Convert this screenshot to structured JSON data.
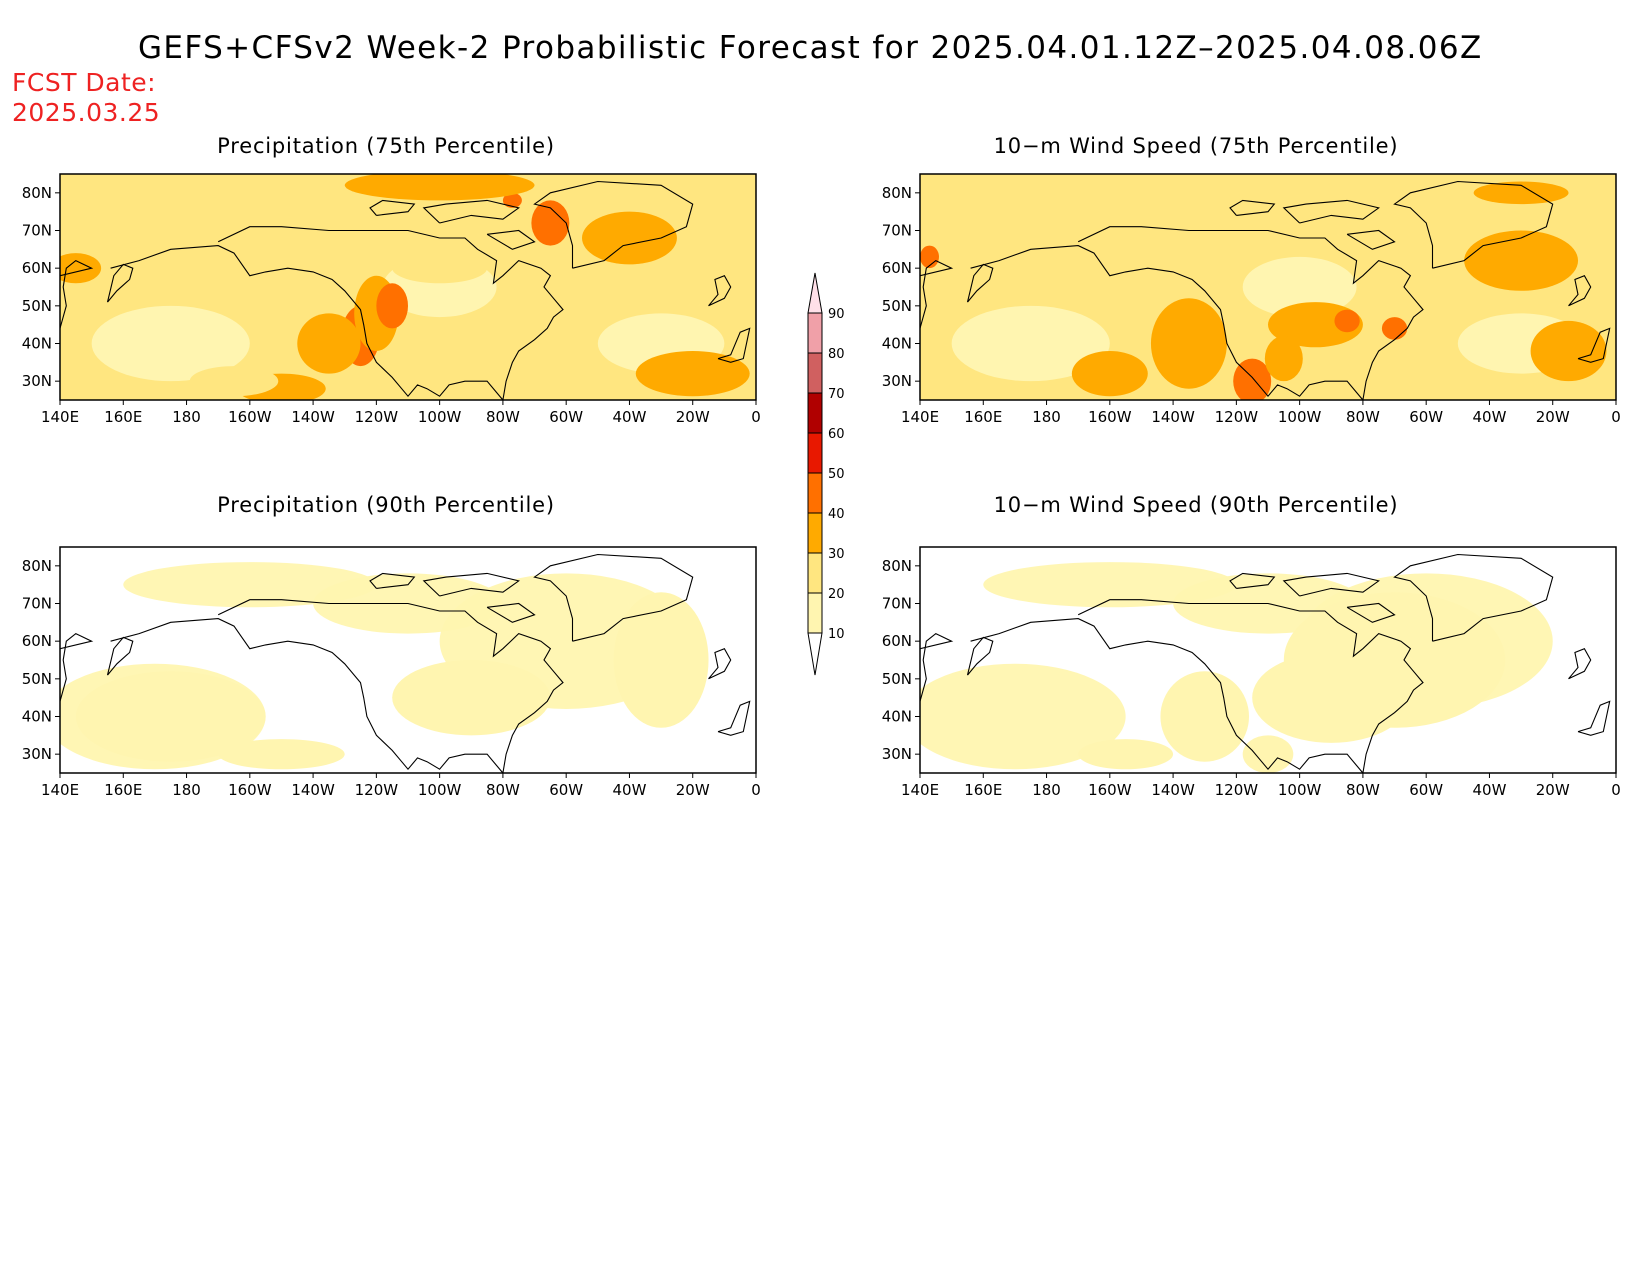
{
  "title": "GEFS+CFSv2 Week-2 Probabilistic Forecast for 2025.04.01.12Z–2025.04.08.06Z",
  "forecast_date": {
    "label": "FCST Date:",
    "value": "2025.03.25"
  },
  "panels": [
    {
      "id": "precip75",
      "title": "Precipitation (75th Percentile)",
      "blobs": [
        {
          "lon": 235,
          "lat": 42,
          "rx": 6,
          "ry": 8,
          "level": 3
        },
        {
          "lon": 240,
          "lat": 48,
          "rx": 7,
          "ry": 10,
          "level": 2
        },
        {
          "lon": 245,
          "lat": 50,
          "rx": 5,
          "ry": 6,
          "level": 3
        },
        {
          "lon": 225,
          "lat": 40,
          "rx": 10,
          "ry": 8,
          "level": 2
        },
        {
          "lon": 210,
          "lat": 28,
          "rx": 14,
          "ry": 4,
          "level": 2
        },
        {
          "lon": 195,
          "lat": 30,
          "rx": 14,
          "ry": 4,
          "level": 1
        },
        {
          "lon": 295,
          "lat": 72,
          "rx": 6,
          "ry": 6,
          "level": 3
        },
        {
          "lon": 283,
          "lat": 78,
          "rx": 3,
          "ry": 2,
          "level": 3
        },
        {
          "lon": 320,
          "lat": 68,
          "rx": 15,
          "ry": 7,
          "level": 2
        },
        {
          "lon": 340,
          "lat": 32,
          "rx": 18,
          "ry": 6,
          "level": 2
        },
        {
          "lon": 260,
          "lat": 82,
          "rx": 30,
          "ry": 4,
          "level": 2
        },
        {
          "lon": 160,
          "lat": 82,
          "rx": 25,
          "ry": 4,
          "level": 1
        },
        {
          "lon": 145,
          "lat": 60,
          "rx": 8,
          "ry": 4,
          "level": 2
        },
        {
          "lon": 260,
          "lat": 60,
          "rx": 15,
          "ry": 4,
          "level": 1
        }
      ]
    },
    {
      "id": "wind75",
      "title": "10−m Wind Speed (75th Percentile)",
      "blobs": [
        {
          "lon": 225,
          "lat": 40,
          "rx": 12,
          "ry": 12,
          "level": 2
        },
        {
          "lon": 245,
          "lat": 30,
          "rx": 6,
          "ry": 6,
          "level": 3
        },
        {
          "lon": 265,
          "lat": 45,
          "rx": 15,
          "ry": 6,
          "level": 2
        },
        {
          "lon": 275,
          "lat": 46,
          "rx": 4,
          "ry": 3,
          "level": 3
        },
        {
          "lon": 290,
          "lat": 44,
          "rx": 4,
          "ry": 3,
          "level": 3
        },
        {
          "lon": 330,
          "lat": 62,
          "rx": 18,
          "ry": 8,
          "level": 2
        },
        {
          "lon": 345,
          "lat": 38,
          "rx": 12,
          "ry": 8,
          "level": 2
        },
        {
          "lon": 200,
          "lat": 32,
          "rx": 12,
          "ry": 6,
          "level": 2
        },
        {
          "lon": 143,
          "lat": 63,
          "rx": 3,
          "ry": 3,
          "level": 3
        },
        {
          "lon": 330,
          "lat": 80,
          "rx": 15,
          "ry": 3,
          "level": 2
        },
        {
          "lon": 255,
          "lat": 36,
          "rx": 6,
          "ry": 6,
          "level": 2
        }
      ]
    },
    {
      "id": "precip90",
      "title": "Precipitation (90th Percentile)",
      "blobs": [
        {
          "lon": 175,
          "lat": 40,
          "rx": 30,
          "ry": 12,
          "level": 0
        },
        {
          "lon": 270,
          "lat": 45,
          "rx": 25,
          "ry": 10,
          "level": 0
        },
        {
          "lon": 330,
          "lat": 55,
          "rx": 15,
          "ry": 18,
          "level": 0
        },
        {
          "lon": 210,
          "lat": 30,
          "rx": 20,
          "ry": 4,
          "level": 0
        }
      ]
    },
    {
      "id": "wind90",
      "title": "10−m Wind Speed (90th Percentile)",
      "blobs": [
        {
          "lon": 230,
          "lat": 40,
          "rx": 14,
          "ry": 12,
          "level": 0
        },
        {
          "lon": 290,
          "lat": 55,
          "rx": 35,
          "ry": 18,
          "level": 0
        },
        {
          "lon": 270,
          "lat": 45,
          "rx": 25,
          "ry": 12,
          "level": 0
        },
        {
          "lon": 205,
          "lat": 30,
          "rx": 15,
          "ry": 4,
          "level": 0
        },
        {
          "lon": 250,
          "lat": 30,
          "rx": 8,
          "ry": 5,
          "level": 0
        }
      ]
    }
  ],
  "axes": {
    "lon_ticks": [
      "140E",
      "160E",
      "180",
      "160W",
      "140W",
      "120W",
      "100W",
      "80W",
      "60W",
      "40W",
      "20W",
      "0"
    ],
    "lat_ticks": [
      "80N",
      "70N",
      "60N",
      "50N",
      "40N",
      "30N"
    ],
    "lon_range": [
      140,
      360
    ],
    "lat_range": [
      25,
      85
    ]
  },
  "colorbar": {
    "levels": [
      "10",
      "20",
      "30",
      "40",
      "50",
      "60",
      "70",
      "80",
      "90"
    ],
    "colors": [
      "#fff5b0",
      "#ffe680",
      "#ffaa00",
      "#ff7000",
      "#e81800",
      "#b00000",
      "#d06060",
      "#f0a0a8",
      "#ffe0e8"
    ]
  },
  "colors": {
    "title": "#000000",
    "fcst_date": "#ee2222",
    "base_fill": "#ffe680",
    "land_outline": "#000000"
  }
}
